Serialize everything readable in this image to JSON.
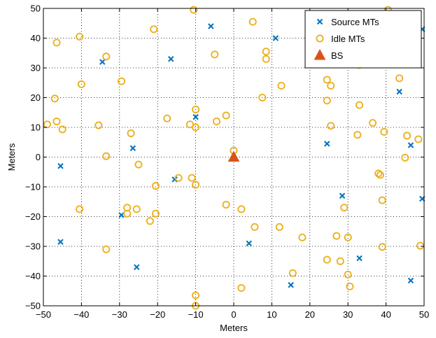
{
  "chart_data": {
    "type": "scatter",
    "xlabel": "Meters",
    "ylabel": "Meters",
    "xlim": [
      -50,
      50
    ],
    "ylim": [
      -50,
      50
    ],
    "xticks": [
      -50,
      -40,
      -30,
      -20,
      -10,
      0,
      10,
      20,
      30,
      40,
      50
    ],
    "yticks": [
      -50,
      -40,
      -30,
      -20,
      -10,
      0,
      10,
      20,
      30,
      40,
      50
    ],
    "grid": true,
    "legend_position": "top-right",
    "series": [
      {
        "name": "Source MTs",
        "marker": "x",
        "color": "#0072bd",
        "points": [
          [
            -6,
            44
          ],
          [
            11,
            40
          ],
          [
            -16.5,
            33
          ],
          [
            -34.5,
            32
          ],
          [
            25,
            48.5
          ],
          [
            49.5,
            43
          ],
          [
            43.5,
            22
          ],
          [
            -10,
            13.5
          ],
          [
            24.5,
            4.5
          ],
          [
            46.5,
            4
          ],
          [
            -26.5,
            3
          ],
          [
            -45.5,
            -3
          ],
          [
            -15.5,
            -7.5
          ],
          [
            28.5,
            -13
          ],
          [
            49.5,
            -14
          ],
          [
            -29.5,
            -19.5
          ],
          [
            -45.5,
            -28.5
          ],
          [
            4,
            -29
          ],
          [
            33,
            -34
          ],
          [
            -25.5,
            -37
          ],
          [
            15,
            -43
          ],
          [
            46.5,
            -41.5
          ]
        ]
      },
      {
        "name": "Idle MTs",
        "marker": "o",
        "color": "#edb120",
        "points": [
          [
            -10.5,
            49.5
          ],
          [
            40.5,
            49.5
          ],
          [
            -40.5,
            40.5
          ],
          [
            -21,
            43
          ],
          [
            5,
            45.5
          ],
          [
            -46.5,
            38.5
          ],
          [
            -33.5,
            33.8
          ],
          [
            -5,
            34.5
          ],
          [
            8.5,
            35.5
          ],
          [
            8.5,
            33
          ],
          [
            33,
            31
          ],
          [
            -40,
            24.5
          ],
          [
            -29.5,
            25.5
          ],
          [
            12.5,
            24
          ],
          [
            24.5,
            26
          ],
          [
            25.5,
            24
          ],
          [
            43.5,
            26.5
          ],
          [
            -47,
            19.7
          ],
          [
            7.5,
            20
          ],
          [
            24.5,
            19
          ],
          [
            33,
            17.5
          ],
          [
            -10,
            16
          ],
          [
            -17.5,
            13
          ],
          [
            -2,
            14
          ],
          [
            -49,
            11
          ],
          [
            -46.5,
            12
          ],
          [
            -45,
            9.3
          ],
          [
            -35.5,
            10.7
          ],
          [
            -27,
            8
          ],
          [
            -11.5,
            11
          ],
          [
            -10,
            10
          ],
          [
            -4.5,
            12
          ],
          [
            25.5,
            10.5
          ],
          [
            36.5,
            11.5
          ],
          [
            39.5,
            8.5
          ],
          [
            32.5,
            7.5
          ],
          [
            45.5,
            7.2
          ],
          [
            48.5,
            6
          ],
          [
            0,
            2.2
          ],
          [
            -33.5,
            0.3
          ],
          [
            -25,
            -2.5
          ],
          [
            45,
            -0.2
          ],
          [
            -11,
            -7
          ],
          [
            -14.5,
            -7
          ],
          [
            -20.5,
            -9.7
          ],
          [
            -10,
            -9.3
          ],
          [
            38,
            -5.5
          ],
          [
            38.5,
            -6
          ],
          [
            -40.5,
            -17.5
          ],
          [
            -28,
            -17
          ],
          [
            -28,
            -19
          ],
          [
            -25.5,
            -17.5
          ],
          [
            -20.5,
            -19
          ],
          [
            -22,
            -21.5
          ],
          [
            -2,
            -16
          ],
          [
            2,
            -17.5
          ],
          [
            29,
            -17
          ],
          [
            5.5,
            -23.5
          ],
          [
            12,
            -23.5
          ],
          [
            27,
            -26.5
          ],
          [
            30,
            -27
          ],
          [
            18,
            -27
          ],
          [
            39,
            -14.5
          ],
          [
            39,
            -30.2
          ],
          [
            49,
            -29.8
          ],
          [
            -33.5,
            -31
          ],
          [
            24.5,
            -34.5
          ],
          [
            28,
            -35
          ],
          [
            15.5,
            -39
          ],
          [
            30,
            -39.5
          ],
          [
            30.5,
            -43.5
          ],
          [
            2,
            -44
          ],
          [
            -10,
            -46.5
          ],
          [
            -10,
            -50
          ]
        ]
      },
      {
        "name": "BS",
        "marker": "triangle",
        "color": "#d95319",
        "points": [
          [
            0,
            0
          ]
        ]
      }
    ]
  }
}
